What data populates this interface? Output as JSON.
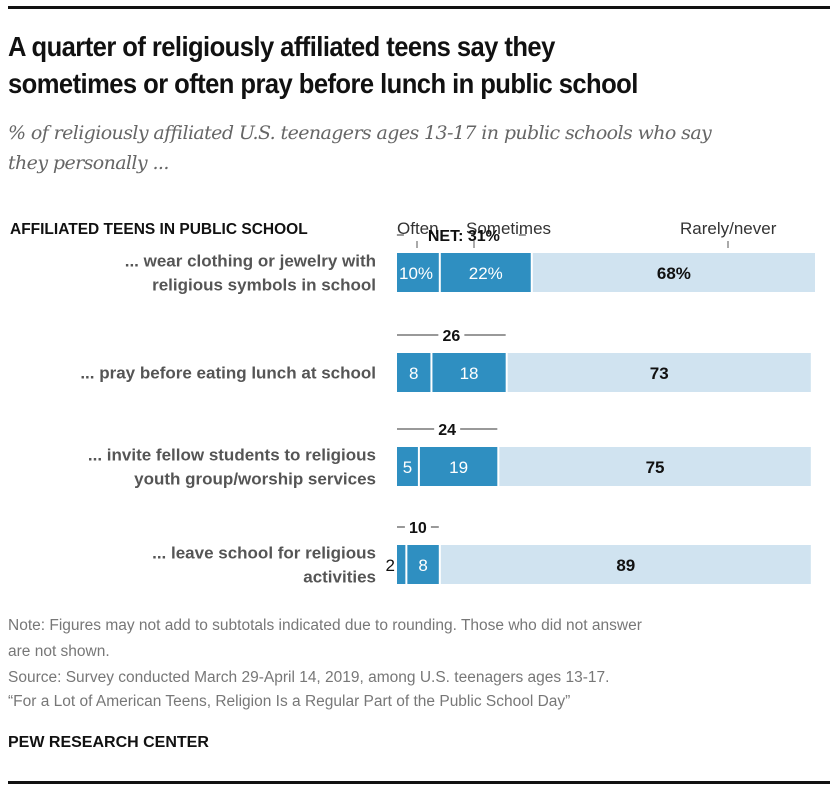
{
  "header": {
    "title_line1": "A quarter of religiously affiliated teens say they",
    "title_line2": "sometimes or often pray before lunch in public school",
    "subtitle_line1": "% of religiously affiliated U.S. teenagers ages 13-17 in public schools who say",
    "subtitle_line2": "they personally ..."
  },
  "chart_data": {
    "type": "bar",
    "orientation": "horizontal-stacked",
    "group_label": "AFFILIATED TEENS IN PUBLIC SCHOOL",
    "legend": [
      "Often",
      "Sometimes",
      "Rarely/never"
    ],
    "colors": {
      "Often": "#2f8fc1",
      "Sometimes": "#2f8fc1",
      "Rarely/never": "#d0e3f0"
    },
    "categories": [
      [
        "... wear clothing or jewelry with",
        "religious symbols in school"
      ],
      [
        "... pray before eating lunch at school"
      ],
      [
        "... invite fellow students to religious",
        "youth group/worship services"
      ],
      [
        "... leave school for religious",
        "activities"
      ]
    ],
    "series": [
      {
        "name": "Often",
        "values": [
          10,
          8,
          5,
          2
        ],
        "labels": [
          "10%",
          "8",
          "5",
          "2"
        ]
      },
      {
        "name": "Sometimes",
        "values": [
          22,
          18,
          19,
          8
        ],
        "labels": [
          "22%",
          "18",
          "19",
          "8"
        ]
      },
      {
        "name": "Rarely/never",
        "values": [
          68,
          73,
          75,
          89
        ],
        "labels": [
          "68%",
          "73",
          "75",
          "89"
        ]
      }
    ],
    "net": {
      "values": [
        31,
        26,
        24,
        10
      ],
      "labels": [
        "NET: 31%",
        "26",
        "24",
        "10"
      ]
    },
    "xlim": [
      0,
      100
    ]
  },
  "footer": {
    "note_line1": "Note: Figures may not add to subtotals indicated due to rounding. Those who did not answer",
    "note_line2": "are not shown.",
    "source": "Source: Survey conducted March 29-April 14, 2019, among U.S. teenagers ages 13-17.",
    "report": "“For a Lot of American Teens, Religion Is a Regular Part of the Public School Day”",
    "brand": "PEW RESEARCH CENTER"
  }
}
